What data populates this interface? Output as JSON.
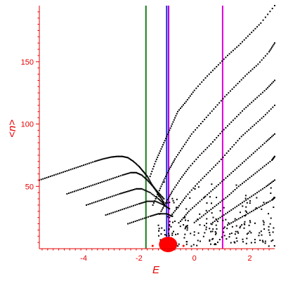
{
  "chart_data": {
    "type": "scatter",
    "xlabel": "E",
    "ylabel": "<n>",
    "xlim": [
      -5.6,
      2.9
    ],
    "ylim": [
      0,
      195
    ],
    "xticks": [
      -4,
      -2,
      0,
      2
    ],
    "xtick_labels": [
      "-4",
      "-2",
      "0",
      "2"
    ],
    "yticks": [
      50,
      100,
      150
    ],
    "ytick_labels": [
      "50",
      "100",
      "150"
    ],
    "grid": false,
    "point_color": "#000000",
    "axis_color": "#e60000",
    "vertical_lines": [
      {
        "x": -1.75,
        "color": "#1a7a1a"
      },
      {
        "x": -1.0,
        "color": "#2222dd"
      },
      {
        "x": -0.93,
        "color": "#b000e0"
      },
      {
        "x": 1.02,
        "color": "#dd00dd"
      }
    ],
    "origin_marker": {
      "x": -0.95,
      "y": 2,
      "color": "#ff0000"
    },
    "series": [
      {
        "x": [
          -5.6,
          -5.2,
          -4.8,
          -4.4,
          -4.0,
          -3.6,
          -3.3,
          -3.0,
          -2.8,
          -2.6,
          -2.4,
          -2.2,
          -2.0,
          -1.85,
          -1.7,
          -1.55,
          -1.4,
          -1.25,
          -1.1
        ],
        "y": [
          55,
          58,
          61,
          64,
          67,
          70,
          72,
          73.5,
          74,
          74,
          73,
          70,
          66,
          62,
          58,
          52,
          47,
          42,
          37
        ]
      },
      {
        "x": [
          -4.6,
          -4.2,
          -3.8,
          -3.4,
          -3.0,
          -2.6,
          -2.3,
          -2.1,
          -1.9,
          -1.7,
          -1.5,
          -1.3,
          -1.1
        ],
        "y": [
          44,
          47,
          50,
          53,
          56,
          59,
          61,
          61,
          59,
          55,
          50,
          45,
          40
        ]
      },
      {
        "x": [
          -3.9,
          -3.5,
          -3.1,
          -2.7,
          -2.4,
          -2.1,
          -1.9,
          -1.6,
          -1.3,
          -1.1
        ],
        "y": [
          35,
          38,
          41,
          44,
          46,
          48,
          48,
          45,
          40,
          36
        ]
      },
      {
        "x": [
          -3.2,
          -2.8,
          -2.4,
          -2.0,
          -1.7,
          -1.4,
          -1.1,
          -0.9
        ],
        "y": [
          27,
          30,
          33,
          36,
          38,
          38,
          35,
          32
        ]
      },
      {
        "x": [
          -2.4,
          -2.0,
          -1.6,
          -1.3,
          -1.0,
          -0.8
        ],
        "y": [
          20,
          23,
          26,
          28,
          28,
          26
        ]
      },
      {
        "x": [
          -1.6,
          -1.4,
          -1.2,
          -1.0,
          -0.8,
          -0.6,
          -0.3,
          0.0,
          0.4,
          0.8,
          1.2,
          1.6,
          2.0,
          2.4,
          2.9
        ],
        "y": [
          58,
          70,
          80,
          90,
          100,
          110,
          118,
          127,
          137,
          146,
          155,
          163,
          172,
          181,
          195
        ]
      },
      {
        "x": [
          -1.5,
          -1.3,
          -1.1,
          -0.9,
          -0.7,
          -0.4,
          -0.1,
          0.3,
          0.7,
          1.1,
          1.5,
          1.9,
          2.3,
          2.7,
          2.9
        ],
        "y": [
          35,
          45,
          55,
          64,
          72,
          82,
          92,
          102,
          112,
          122,
          131,
          140,
          148,
          158,
          165
        ]
      },
      {
        "x": [
          -1.2,
          -1.0,
          -0.8,
          -0.5,
          -0.2,
          0.2,
          0.6,
          1.0,
          1.4,
          1.8,
          2.2,
          2.6,
          2.9
        ],
        "y": [
          30,
          38,
          46,
          56,
          65,
          75,
          84,
          94,
          103,
          112,
          120,
          128,
          135
        ]
      },
      {
        "x": [
          -0.9,
          -0.6,
          -0.3,
          0.1,
          0.5,
          0.9,
          1.3,
          1.7,
          2.1,
          2.5,
          2.9
        ],
        "y": [
          25,
          33,
          42,
          52,
          61,
          70,
          80,
          90,
          98,
          106,
          115
        ]
      },
      {
        "x": [
          -0.5,
          -0.2,
          0.2,
          0.6,
          1.0,
          1.4,
          1.8,
          2.2,
          2.6,
          2.9
        ],
        "y": [
          22,
          30,
          38,
          46,
          54,
          62,
          70,
          78,
          86,
          92
        ]
      },
      {
        "x": [
          0.0,
          0.4,
          0.8,
          1.2,
          1.6,
          2.0,
          2.4,
          2.8,
          2.9
        ],
        "y": [
          21,
          28,
          35,
          42,
          50,
          57,
          64,
          71,
          74
        ]
      },
      {
        "x": [
          0.6,
          1.0,
          1.4,
          1.8,
          2.2,
          2.6,
          2.9
        ],
        "y": [
          20,
          26,
          32,
          38,
          44,
          50,
          55
        ]
      },
      {
        "x": [
          1.2,
          1.6,
          2.0,
          2.4,
          2.8,
          2.9
        ],
        "y": [
          19,
          24,
          29,
          34,
          39,
          41
        ]
      }
    ]
  }
}
